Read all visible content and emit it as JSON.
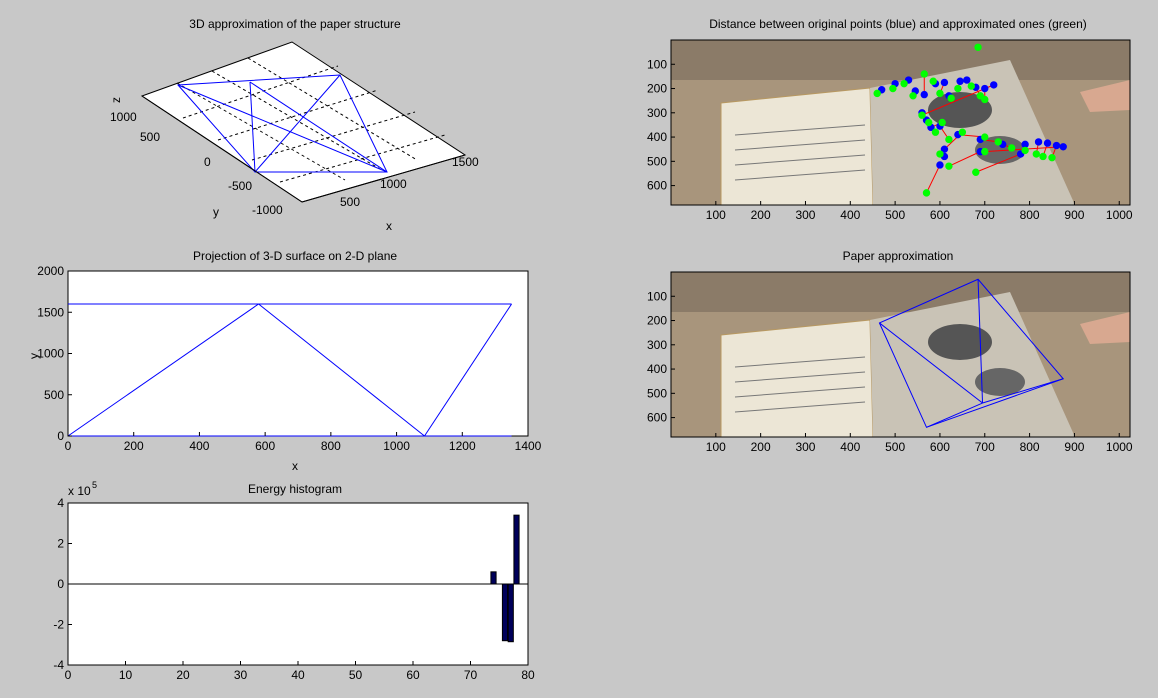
{
  "figure": {
    "background": "#c8c8c8",
    "line_color": "#0000ff",
    "bar_color": "#00005a"
  },
  "chart_data": [
    {
      "id": "surface3d",
      "type": "line",
      "title": "3D approximation of the paper structure",
      "xlabel": "x",
      "ylabel": "y",
      "zlabel": "z",
      "x_ticks": [
        "500",
        "1000",
        "1500"
      ],
      "y_ticks": [
        "-1000",
        "-500",
        "0",
        "500",
        "1000"
      ],
      "grid": true,
      "note": "3-D wireframe of the paper surface (perspective view)"
    },
    {
      "id": "projection",
      "type": "line",
      "title": "Projection of 3-D surface on 2-D plane",
      "xlabel": "x",
      "ylabel": "y",
      "xlim": [
        0,
        1400
      ],
      "ylim": [
        0,
        2000
      ],
      "x_ticks": [
        0,
        200,
        400,
        600,
        800,
        1000,
        1200,
        1400
      ],
      "y_ticks": [
        0,
        500,
        1000,
        1500,
        2000
      ],
      "grid": false,
      "segments": [
        {
          "x": [
            0,
            1350
          ],
          "y": [
            0,
            0
          ]
        },
        {
          "x": [
            0,
            1350
          ],
          "y": [
            1600,
            1600
          ]
        },
        {
          "x": [
            0,
            580
          ],
          "y": [
            0,
            1600
          ]
        },
        {
          "x": [
            580,
            1085
          ],
          "y": [
            1600,
            0
          ]
        },
        {
          "x": [
            1085,
            1350
          ],
          "y": [
            0,
            1600
          ]
        }
      ]
    },
    {
      "id": "energy",
      "type": "bar",
      "title": "Energy histogram",
      "xlabel": "",
      "ylabel": "",
      "exponent_label": "x 10",
      "exponent_power": "5",
      "xlim": [
        0,
        80
      ],
      "ylim": [
        -4,
        4
      ],
      "x_ticks": [
        0,
        10,
        20,
        30,
        40,
        50,
        60,
        70,
        80
      ],
      "y_ticks": [
        -4,
        -2,
        0,
        2,
        4
      ],
      "grid": false,
      "x": [
        74,
        76,
        77,
        78
      ],
      "values": [
        0.6,
        -2.8,
        -2.85,
        3.4
      ]
    },
    {
      "id": "distance",
      "type": "scatter",
      "title": "Distance between original points (blue) and approximated ones (green)",
      "xlabel": "",
      "ylabel": "",
      "xlim": [
        0,
        1024
      ],
      "ylim": [
        0,
        680
      ],
      "y_reversed": true,
      "x_ticks": [
        100,
        200,
        300,
        400,
        500,
        600,
        700,
        800,
        900,
        1000
      ],
      "y_ticks": [
        100,
        200,
        300,
        400,
        500,
        600
      ],
      "series": [
        {
          "name": "blue",
          "color": "#0000ff",
          "x": [
            470,
            500,
            530,
            545,
            565,
            590,
            610,
            620,
            645,
            660,
            680,
            700,
            720,
            560,
            570,
            580,
            600,
            610,
            640,
            690,
            740,
            790,
            820,
            840,
            860,
            875,
            780,
            690,
            610,
            600
          ],
          "y": [
            205,
            180,
            165,
            210,
            225,
            180,
            175,
            230,
            170,
            165,
            195,
            200,
            185,
            300,
            330,
            360,
            355,
            450,
            390,
            410,
            430,
            430,
            420,
            425,
            435,
            440,
            470,
            460,
            480,
            515
          ]
        },
        {
          "name": "green",
          "color": "#00ff00",
          "x": [
            460,
            495,
            520,
            540,
            565,
            585,
            600,
            625,
            640,
            670,
            690,
            700,
            560,
            575,
            590,
            605,
            620,
            650,
            700,
            730,
            760,
            790,
            815,
            830,
            850,
            700,
            680,
            620,
            600,
            570
          ],
          "y": [
            220,
            200,
            180,
            230,
            140,
            170,
            220,
            240,
            200,
            190,
            230,
            245,
            310,
            340,
            380,
            340,
            410,
            380,
            400,
            420,
            445,
            455,
            470,
            480,
            485,
            460,
            545,
            520,
            470,
            630
          ]
        },
        {
          "name": "top",
          "color": "#00ff00",
          "x": [
            685
          ],
          "y": [
            30
          ]
        }
      ]
    },
    {
      "id": "paper",
      "type": "line",
      "title": "Paper approximation",
      "xlabel": "",
      "ylabel": "",
      "xlim": [
        0,
        1024
      ],
      "ylim": [
        0,
        680
      ],
      "y_reversed": true,
      "x_ticks": [
        100,
        200,
        300,
        400,
        500,
        600,
        700,
        800,
        900,
        1000
      ],
      "y_ticks": [
        100,
        200,
        300,
        400,
        500,
        600
      ],
      "polygon": {
        "x": [
          465,
          685,
          875,
          570
        ],
        "y": [
          210,
          30,
          440,
          640
        ]
      },
      "segments": [
        {
          "x": [
            465,
            695
          ],
          "y": [
            210,
            540
          ]
        },
        {
          "x": [
            685,
            695
          ],
          "y": [
            30,
            540
          ]
        },
        {
          "x": [
            695,
            875
          ],
          "y": [
            540,
            440
          ]
        },
        {
          "x": [
            695,
            570
          ],
          "y": [
            540,
            640
          ]
        }
      ]
    }
  ]
}
